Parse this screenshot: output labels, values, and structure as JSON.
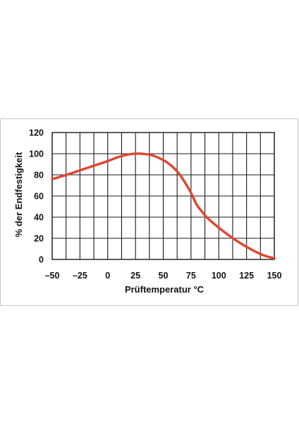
{
  "chart_data": {
    "type": "line",
    "title": "",
    "xlabel": "Prüftemperatur °C",
    "ylabel": "% der Endfestigkeit",
    "xlim": [
      -50,
      150
    ],
    "ylim": [
      0,
      120
    ],
    "x_ticks": [
      -50,
      -25,
      0,
      25,
      50,
      75,
      100,
      125,
      150
    ],
    "x_tick_labels": [
      "–50",
      "–25",
      "0",
      "25",
      "50",
      "75",
      "100",
      "125",
      "150"
    ],
    "y_ticks": [
      0,
      20,
      40,
      60,
      80,
      100,
      120
    ],
    "y_tick_labels": [
      "0",
      "20",
      "40",
      "60",
      "80",
      "100",
      "120"
    ],
    "x_gridlines": [
      -50,
      -37.5,
      -25,
      -12.5,
      0,
      12.5,
      25,
      37.5,
      50,
      62.5,
      75,
      87.5,
      100,
      112.5,
      125,
      137.5,
      150
    ],
    "y_gridlines": [
      0,
      20,
      40,
      60,
      80,
      100,
      120
    ],
    "grid": true,
    "series": [
      {
        "color": "#e0452f",
        "x": [
          -50,
          -40,
          -30,
          -20,
          -10,
          0,
          10,
          20,
          25,
          30,
          40,
          50,
          55,
          60,
          65,
          70,
          75,
          80,
          85,
          90,
          100,
          110,
          120,
          130,
          140,
          150
        ],
        "y": [
          76,
          79,
          82.5,
          86,
          89.5,
          93,
          97,
          99.5,
          100,
          100,
          98.5,
          94,
          90.5,
          86,
          80,
          72,
          63,
          52,
          45,
          39,
          30,
          22,
          15,
          9,
          4,
          1
        ]
      }
    ]
  }
}
